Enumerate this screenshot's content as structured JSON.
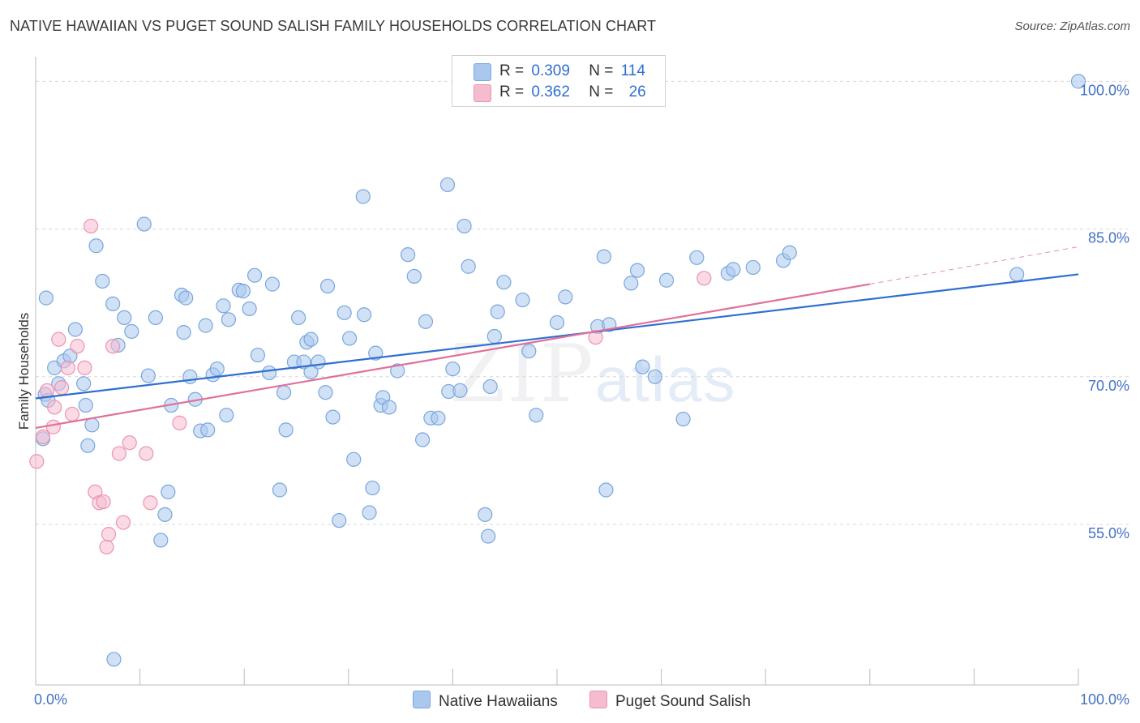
{
  "title": "NATIVE HAWAIIAN VS PUGET SOUND SALISH FAMILY HOUSEHOLDS CORRELATION CHART",
  "source": "Source: ZipAtlas.com",
  "watermark": {
    "zip": "ZIP",
    "atlas": "atlas"
  },
  "legend": {
    "blue": {
      "r_label": "R =",
      "r_value": "0.309",
      "n_label": "N =",
      "n_value": "114"
    },
    "pink": {
      "r_label": "R =",
      "r_value": "0.362",
      "n_label": "N =",
      "n_value": "26"
    }
  },
  "colors": {
    "blue_fill": "#aac8ee",
    "blue_stroke": "#7aa6de",
    "blue_line": "#2f6fd0",
    "pink_fill": "#f5bcd0",
    "pink_stroke": "#ec93b2",
    "pink_line": "#e0709a",
    "grid": "#d8d8d8",
    "tick_text": "#4472c4"
  },
  "chart_data": {
    "type": "scatter",
    "title": "NATIVE HAWAIIAN VS PUGET SOUND SALISH FAMILY HOUSEHOLDS CORRELATION CHART",
    "xlabel": "",
    "ylabel": "Family Households",
    "xlim": [
      0,
      100
    ],
    "ylim": [
      38.7,
      102.5
    ],
    "x_tick_labels": [
      "0.0%",
      "100.0%"
    ],
    "y_ticks": [
      55,
      70,
      85,
      100
    ],
    "y_tick_labels": [
      "55.0%",
      "70.0%",
      "85.0%",
      "100.0%"
    ],
    "legend_position": "top-center",
    "series": [
      {
        "name": "Native Hawaiians",
        "color": "blue",
        "points": [
          [
            0.7,
            63.7
          ],
          [
            0.9,
            68.2
          ],
          [
            1.2,
            67.6
          ],
          [
            1.8,
            70.9
          ],
          [
            2.2,
            69.3
          ],
          [
            2.7,
            71.6
          ],
          [
            3.3,
            72.1
          ],
          [
            3.8,
            74.8
          ],
          [
            4.6,
            69.3
          ],
          [
            4.8,
            67.1
          ],
          [
            5.4,
            65.1
          ],
          [
            5.8,
            83.3
          ],
          [
            6.4,
            79.7
          ],
          [
            7.4,
            77.4
          ],
          [
            7.9,
            73.2
          ],
          [
            8.5,
            76.0
          ],
          [
            9.2,
            74.6
          ],
          [
            10.4,
            85.5
          ],
          [
            10.8,
            70.1
          ],
          [
            11.5,
            76.0
          ],
          [
            12.0,
            53.4
          ],
          [
            12.4,
            56.0
          ],
          [
            12.7,
            58.3
          ],
          [
            13.0,
            67.1
          ],
          [
            14.0,
            78.3
          ],
          [
            14.2,
            74.5
          ],
          [
            14.4,
            78.0
          ],
          [
            14.8,
            70.0
          ],
          [
            15.3,
            67.7
          ],
          [
            15.8,
            64.5
          ],
          [
            16.3,
            75.2
          ],
          [
            16.5,
            64.6
          ],
          [
            17.0,
            70.2
          ],
          [
            17.4,
            70.8
          ],
          [
            18.0,
            77.2
          ],
          [
            18.3,
            66.1
          ],
          [
            18.5,
            75.8
          ],
          [
            19.5,
            78.8
          ],
          [
            19.9,
            78.7
          ],
          [
            20.5,
            76.9
          ],
          [
            21.0,
            80.3
          ],
          [
            21.3,
            72.2
          ],
          [
            22.4,
            70.4
          ],
          [
            22.7,
            79.4
          ],
          [
            23.4,
            58.5
          ],
          [
            23.8,
            68.4
          ],
          [
            24.0,
            64.6
          ],
          [
            24.8,
            71.5
          ],
          [
            25.2,
            76.0
          ],
          [
            25.7,
            71.5
          ],
          [
            26.0,
            73.5
          ],
          [
            26.4,
            73.8
          ],
          [
            27.1,
            71.5
          ],
          [
            27.8,
            68.4
          ],
          [
            28.0,
            79.2
          ],
          [
            28.5,
            65.9
          ],
          [
            29.1,
            55.4
          ],
          [
            29.6,
            76.5
          ],
          [
            30.1,
            73.9
          ],
          [
            30.5,
            61.6
          ],
          [
            31.4,
            88.3
          ],
          [
            31.5,
            76.3
          ],
          [
            32.0,
            56.2
          ],
          [
            32.3,
            58.7
          ],
          [
            32.6,
            72.4
          ],
          [
            33.1,
            67.1
          ],
          [
            33.3,
            67.9
          ],
          [
            33.9,
            66.9
          ],
          [
            34.7,
            70.6
          ],
          [
            35.7,
            82.4
          ],
          [
            36.3,
            80.2
          ],
          [
            37.1,
            63.6
          ],
          [
            37.4,
            75.6
          ],
          [
            37.9,
            65.8
          ],
          [
            38.6,
            65.8
          ],
          [
            39.5,
            89.5
          ],
          [
            39.6,
            68.5
          ],
          [
            40.0,
            70.8
          ],
          [
            40.7,
            68.6
          ],
          [
            41.1,
            85.3
          ],
          [
            41.5,
            81.2
          ],
          [
            43.1,
            56.0
          ],
          [
            43.4,
            53.8
          ],
          [
            43.6,
            69.0
          ],
          [
            44.0,
            74.1
          ],
          [
            44.3,
            76.6
          ],
          [
            44.9,
            79.6
          ],
          [
            46.7,
            77.8
          ],
          [
            47.3,
            72.6
          ],
          [
            48.0,
            66.1
          ],
          [
            50.0,
            75.5
          ],
          [
            50.8,
            78.1
          ],
          [
            53.9,
            75.1
          ],
          [
            54.5,
            82.2
          ],
          [
            54.7,
            58.5
          ],
          [
            55.0,
            75.3
          ],
          [
            57.1,
            79.5
          ],
          [
            57.7,
            80.8
          ],
          [
            58.2,
            71.0
          ],
          [
            59.4,
            70.0
          ],
          [
            60.5,
            79.8
          ],
          [
            63.4,
            82.1
          ],
          [
            66.4,
            80.5
          ],
          [
            66.9,
            80.9
          ],
          [
            68.8,
            81.1
          ],
          [
            71.7,
            81.8
          ],
          [
            72.3,
            82.6
          ],
          [
            94.1,
            80.4
          ],
          [
            100.0,
            100.0
          ],
          [
            1.0,
            78.0
          ],
          [
            5.0,
            63.0
          ],
          [
            26.4,
            70.5
          ],
          [
            62.1,
            65.7
          ],
          [
            7.5,
            41.3
          ]
        ]
      },
      {
        "name": "Puget Sound Salish",
        "color": "pink",
        "points": [
          [
            0.1,
            61.4
          ],
          [
            0.7,
            63.9
          ],
          [
            1.1,
            68.6
          ],
          [
            1.8,
            66.9
          ],
          [
            2.2,
            73.8
          ],
          [
            2.5,
            68.9
          ],
          [
            3.1,
            70.9
          ],
          [
            3.5,
            66.2
          ],
          [
            4.0,
            73.1
          ],
          [
            4.7,
            70.9
          ],
          [
            5.3,
            85.3
          ],
          [
            5.7,
            58.3
          ],
          [
            6.1,
            57.2
          ],
          [
            6.5,
            57.3
          ],
          [
            6.8,
            52.7
          ],
          [
            7.0,
            54.0
          ],
          [
            7.4,
            73.1
          ],
          [
            8.0,
            62.2
          ],
          [
            8.4,
            55.2
          ],
          [
            9.0,
            63.3
          ],
          [
            10.6,
            62.2
          ],
          [
            11.0,
            57.2
          ],
          [
            13.8,
            65.3
          ],
          [
            64.1,
            80.0
          ],
          [
            53.7,
            74.0
          ],
          [
            1.7,
            64.9
          ]
        ]
      }
    ],
    "trend_lines": [
      {
        "series": "Native Hawaiians",
        "x": [
          0,
          100
        ],
        "y": [
          67.8,
          80.4
        ],
        "style": "solid"
      },
      {
        "series": "Puget Sound Salish",
        "x": [
          0,
          80
        ],
        "y": [
          64.8,
          79.4
        ],
        "style": "solid"
      },
      {
        "series": "Puget Sound Salish",
        "x": [
          80,
          100
        ],
        "y": [
          79.4,
          83.2
        ],
        "style": "dashed"
      }
    ]
  },
  "bottom_legend": {
    "blue_label": "Native Hawaiians",
    "pink_label": "Puget Sound Salish"
  }
}
